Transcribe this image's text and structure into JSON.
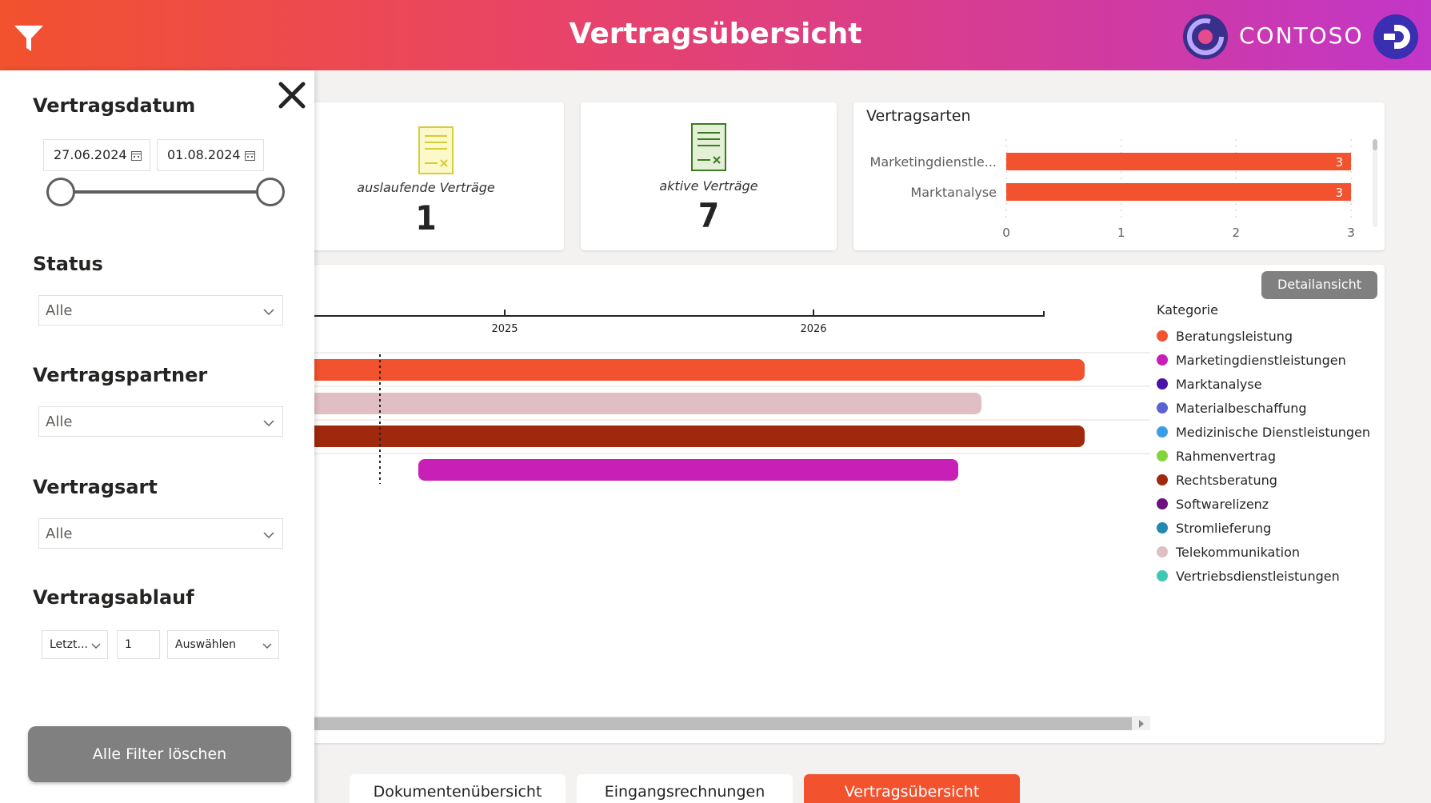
{
  "header": {
    "title": "Vertragsübersicht",
    "brand": "CONTOSO",
    "gradient_start": "#f2522e",
    "gradient_end": "#c236c8"
  },
  "kpis": [
    {
      "label": "auslaufende Verträge",
      "value": "1",
      "icon": "document-yellow-icon"
    },
    {
      "label": "aktive Verträge",
      "value": "7",
      "icon": "document-green-icon"
    }
  ],
  "vertragsarten_chart": {
    "title": "Vertragsarten",
    "chart_data": {
      "type": "bar",
      "orientation": "horizontal",
      "categories": [
        "Marketingdienstle...",
        "Marktanalyse"
      ],
      "values": [
        3,
        3
      ],
      "data_labels": [
        "3",
        "3"
      ],
      "xticks": [
        "0",
        "1",
        "2",
        "3"
      ],
      "xlim": [
        0,
        3
      ],
      "color": "#f2522e"
    }
  },
  "timeline": {
    "detail_button": "Detailansicht",
    "axis_years": [
      "2025",
      "2026"
    ],
    "bars": [
      {
        "category": "Beratungsleistung",
        "color": "#f2522e"
      },
      {
        "category": "Telekommunikation",
        "color": "#e0bfc4"
      },
      {
        "category": "Rechtsberatung",
        "color": "#a0290d"
      },
      {
        "category": "Marketingdienstleistungen",
        "color": "#c81fb6"
      }
    ],
    "legend_title": "Kategorie",
    "legend": [
      {
        "label": "Beratungsleistung",
        "color": "#f2522e"
      },
      {
        "label": "Marketingdienstleistungen",
        "color": "#c81fb6"
      },
      {
        "label": "Marktanalyse",
        "color": "#4b12a8"
      },
      {
        "label": "Materialbeschaffung",
        "color": "#5a63d3"
      },
      {
        "label": "Medizinische Dienstleistungen",
        "color": "#3b9de6"
      },
      {
        "label": "Rahmenvertrag",
        "color": "#83d43b"
      },
      {
        "label": "Rechtsberatung",
        "color": "#a0290d"
      },
      {
        "label": "Softwarelizenz",
        "color": "#6d1180"
      },
      {
        "label": "Stromlieferung",
        "color": "#2389b2"
      },
      {
        "label": "Telekommunikation",
        "color": "#e0bfc4"
      },
      {
        "label": "Vertriebsdienstleistungen",
        "color": "#3fc9b4"
      }
    ]
  },
  "filter_panel": {
    "vertragsdatum": {
      "heading": "Vertragsdatum",
      "from": "27.06.2024",
      "to": "01.08.2024"
    },
    "status": {
      "heading": "Status",
      "value": "Alle"
    },
    "vertragspartner": {
      "heading": "Vertragspartner",
      "value": "Alle"
    },
    "vertragsart": {
      "heading": "Vertragsart",
      "value": "Alle"
    },
    "vertragsablauf": {
      "heading": "Vertragsablauf",
      "period": "Letzt...",
      "count": "1",
      "unit": "Auswählen"
    },
    "clear_button": "Alle Filter löschen"
  },
  "tabs": [
    {
      "label": "Dokumentenübersicht",
      "active": false
    },
    {
      "label": "Eingangsrechnungen",
      "active": false
    },
    {
      "label": "Vertragsübersicht",
      "active": true
    }
  ]
}
